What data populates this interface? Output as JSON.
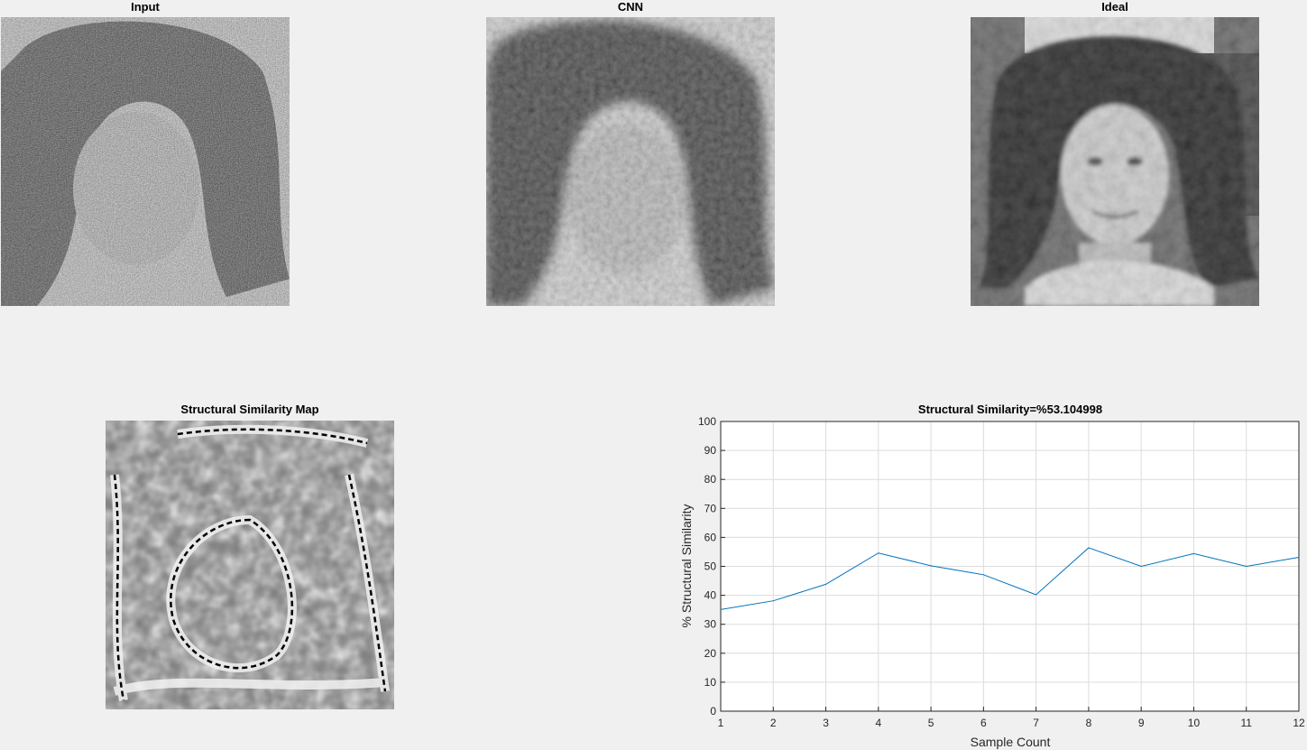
{
  "panels": {
    "input": {
      "title": "Input"
    },
    "cnn": {
      "title": "CNN"
    },
    "ideal": {
      "title": "Ideal"
    },
    "ssim_map": {
      "title": "Structural Similarity Map"
    }
  },
  "chart_data": {
    "type": "line",
    "title": "Structural Similarity=%53.104998",
    "xlabel": "Sample Count",
    "ylabel": "% Structural Similarity",
    "x": [
      1,
      2,
      3,
      4,
      5,
      6,
      7,
      8,
      9,
      10,
      11,
      12
    ],
    "series": [
      {
        "values": [
          35.1,
          38.1,
          43.8,
          54.6,
          50.2,
          47.1,
          40.2,
          56.4,
          50.0,
          54.4,
          50.0,
          53.1
        ],
        "color": "#0072bd"
      }
    ],
    "xlim": [
      1,
      12
    ],
    "ylim": [
      0,
      100
    ],
    "xticks": [
      "1",
      "2",
      "3",
      "4",
      "5",
      "6",
      "7",
      "8",
      "9",
      "10",
      "11",
      "12"
    ],
    "yticks": [
      "0",
      "10",
      "20",
      "30",
      "40",
      "50",
      "60",
      "70",
      "80",
      "90",
      "100"
    ],
    "grid": true,
    "legend": "none"
  }
}
